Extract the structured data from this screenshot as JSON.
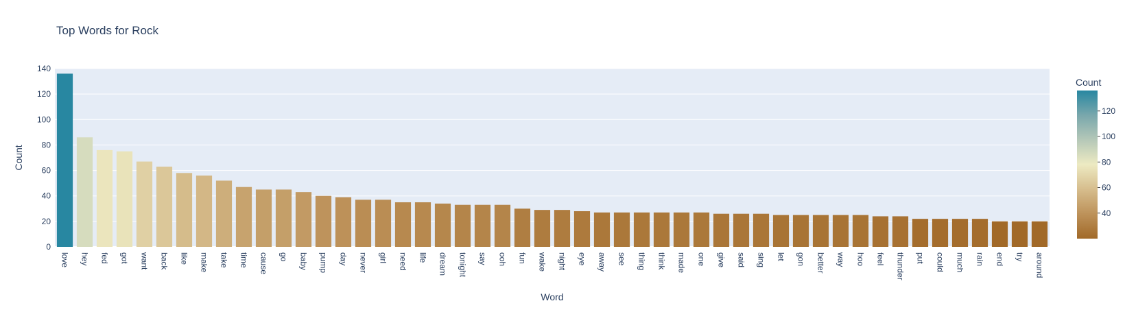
{
  "chart_data": {
    "type": "bar",
    "title": "Top Words for Rock",
    "xlabel": "Word",
    "ylabel": "Count",
    "ylim": [
      0,
      140
    ],
    "yticks": [
      0,
      20,
      40,
      60,
      80,
      100,
      120,
      140
    ],
    "categories": [
      "love",
      "hey",
      "fed",
      "got",
      "want",
      "back",
      "like",
      "make",
      "take",
      "time",
      "cause",
      "go",
      "baby",
      "pump",
      "day",
      "never",
      "girl",
      "need",
      "life",
      "dream",
      "tonight",
      "say",
      "ooh",
      "fun",
      "wake",
      "night",
      "eye",
      "away",
      "see",
      "thing",
      "think",
      "made",
      "one",
      "give",
      "said",
      "sing",
      "let",
      "gon",
      "better",
      "way",
      "hoo",
      "feel",
      "thunder",
      "put",
      "could",
      "much",
      "rain",
      "end",
      "try",
      "around"
    ],
    "values": [
      136,
      86,
      76,
      75,
      67,
      63,
      58,
      56,
      52,
      47,
      45,
      45,
      43,
      40,
      39,
      37,
      37,
      35,
      35,
      34,
      33,
      33,
      33,
      30,
      29,
      29,
      28,
      27,
      27,
      27,
      27,
      27,
      27,
      26,
      26,
      26,
      25,
      25,
      25,
      25,
      25,
      24,
      24,
      22,
      22,
      22,
      22,
      20,
      20,
      20
    ],
    "grid": true,
    "colorbar": {
      "title": "Count",
      "ticks": [
        40,
        60,
        80,
        100,
        120
      ],
      "range": [
        20,
        136
      ],
      "colorscale": [
        "#a16928",
        "#bd925a",
        "#d6bd8d",
        "#edeac2",
        "#b5c8b8",
        "#79a7ac",
        "#2887a1"
      ]
    }
  }
}
